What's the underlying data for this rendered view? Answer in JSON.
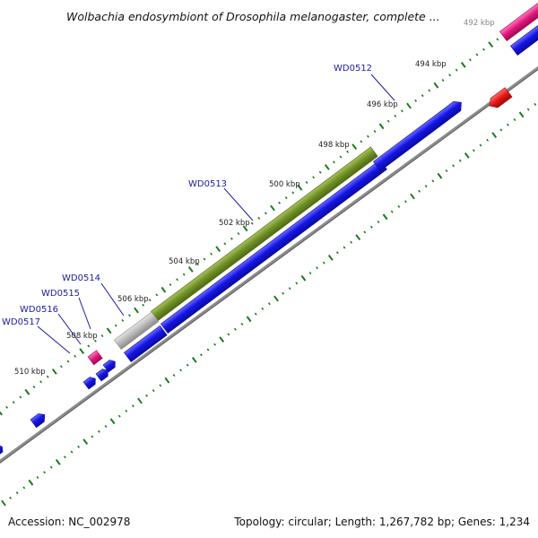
{
  "title": "Wolbachia endosymbiont of Drosophila melanogaster, complete ...",
  "footer": {
    "accession": "Accession: NC_002978",
    "summary": "Topology: circular; Length: 1,267,782 bp; Genes: 1,234"
  },
  "ticks": [
    "492 kbp",
    "494 kbp",
    "496 kbp",
    "498 kbp",
    "500 kbp",
    "502 kbp",
    "504 kbp",
    "506 kbp",
    "508 kbp",
    "510 kbp"
  ],
  "genes": [
    "WD0512",
    "WD0513",
    "WD0514",
    "WD0515",
    "WD0516",
    "WD0517"
  ],
  "colors": {
    "backbone": "#8c8c8c",
    "forward_cds": "#1515e6",
    "reverse_cds": "#e61515",
    "olive_feature": "#6e8f24",
    "grey_feature": "#b8b8b8",
    "pink_feature": "#e0157a",
    "tick_marks": "#1a7a1a"
  }
}
